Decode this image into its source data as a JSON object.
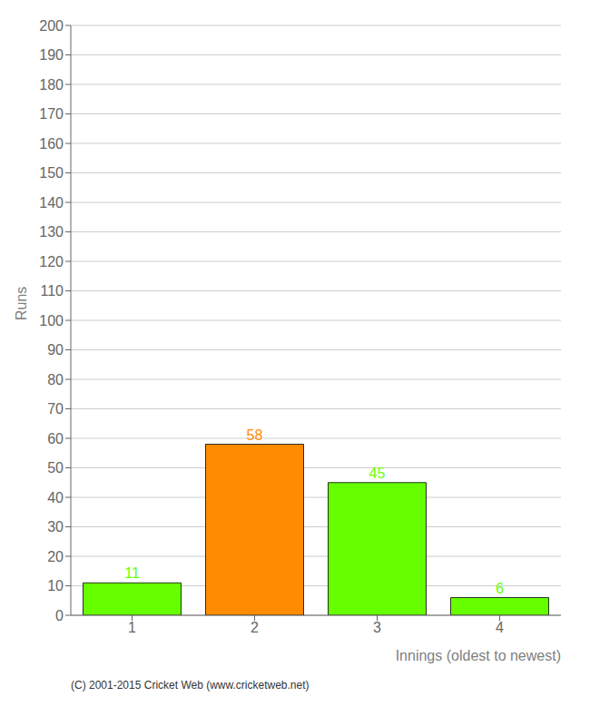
{
  "chart_data": {
    "type": "bar",
    "categories": [
      1,
      2,
      3,
      4
    ],
    "values": [
      11,
      58,
      45,
      6
    ],
    "colors": [
      "#66ff00",
      "#ff8c00",
      "#66ff00",
      "#66ff00"
    ],
    "ylabel": "Runs",
    "xlabel": "Innings (oldest to newest)",
    "ylim": [
      0,
      200
    ],
    "yticks": [
      0,
      10,
      20,
      30,
      40,
      50,
      60,
      70,
      80,
      90,
      100,
      110,
      120,
      130,
      140,
      150,
      160,
      170,
      180,
      190,
      200
    ],
    "grid": true,
    "data_labels": true,
    "annotations": [
      "(C) 2001-2015 Cricket Web (www.cricketweb.net)"
    ]
  }
}
